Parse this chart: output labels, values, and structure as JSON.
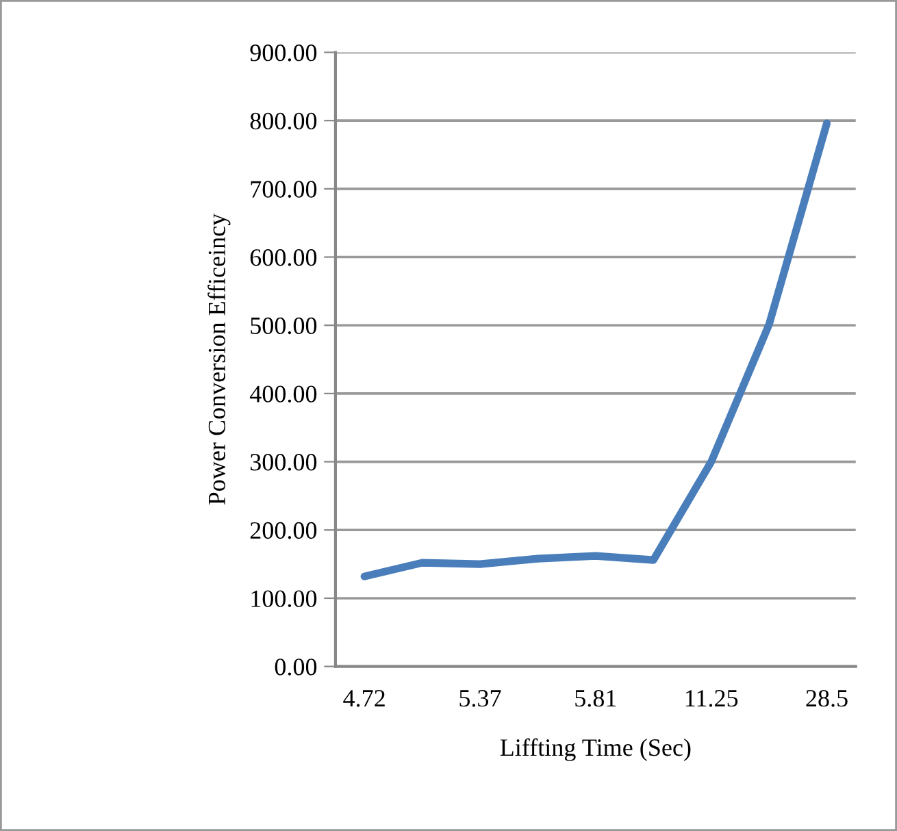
{
  "chart_data": {
    "type": "line",
    "xlabel": "Liffting Time (Sec)",
    "ylabel": "Power Conversion Efficeincy",
    "categories": [
      "4.72",
      null,
      "5.37",
      null,
      "5.81",
      null,
      "11.25",
      null,
      "28.5"
    ],
    "series": [
      {
        "color": "#4a7ebb",
        "values": [
          132,
          152,
          150,
          158,
          162,
          156,
          300,
          501,
          796
        ]
      }
    ],
    "ylim": [
      0,
      900
    ],
    "yticks": [
      {
        "value": 0,
        "label": "0.00"
      },
      {
        "value": 100,
        "label": "100.00"
      },
      {
        "value": 200,
        "label": "200.00"
      },
      {
        "value": 300,
        "label": "300.00"
      },
      {
        "value": 400,
        "label": "400.00"
      },
      {
        "value": 500,
        "label": "500.00"
      },
      {
        "value": 600,
        "label": "600.00"
      },
      {
        "value": 700,
        "label": "700.00"
      },
      {
        "value": 800,
        "label": "800.00"
      },
      {
        "value": 900,
        "label": "900.00"
      }
    ],
    "grid": "y",
    "legend": false,
    "marker": "none",
    "line_style": "solid"
  }
}
